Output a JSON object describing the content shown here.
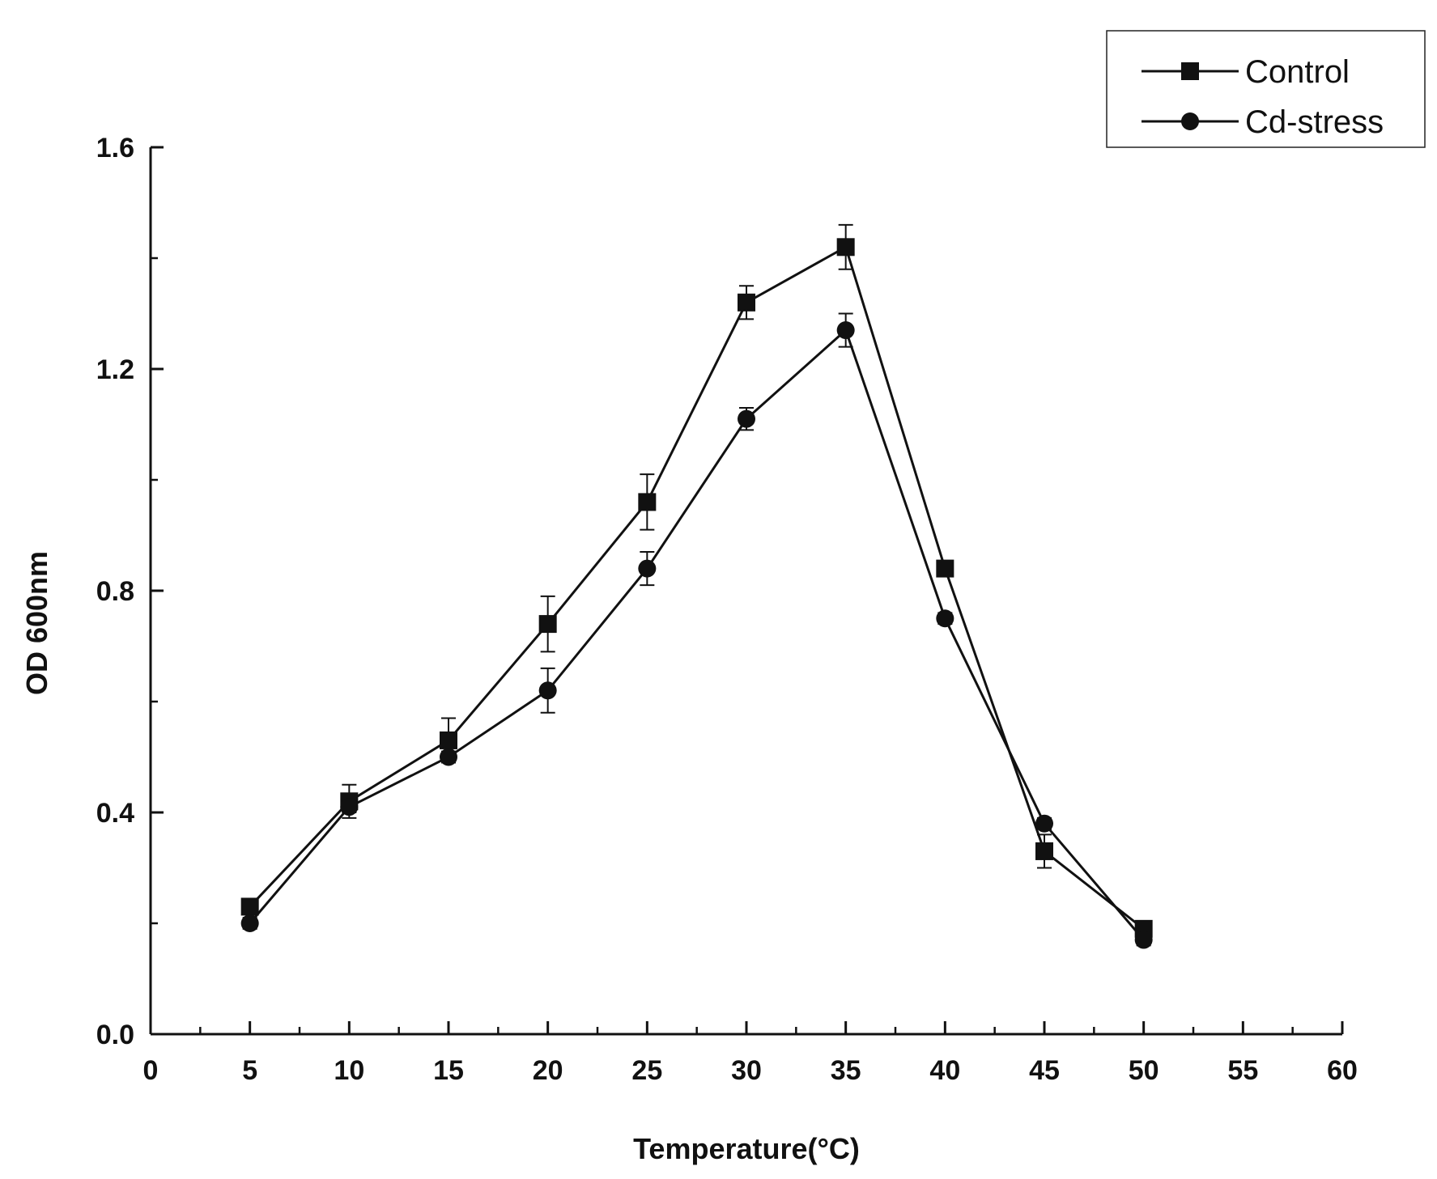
{
  "chart_data": {
    "type": "line",
    "title": "",
    "xlabel": "Temperature(°C)",
    "ylabel": "OD 600nm",
    "xlim": [
      0,
      60
    ],
    "ylim": [
      0.0,
      1.6
    ],
    "x_ticks": [
      "0",
      "5",
      "10",
      "15",
      "20",
      "25",
      "30",
      "35",
      "40",
      "45",
      "50",
      "55",
      "60"
    ],
    "y_ticks": [
      "0.0",
      "0.4",
      "0.8",
      "1.2",
      "1.6"
    ],
    "grid": false,
    "legend_position": "top-right",
    "x": [
      5,
      10,
      15,
      20,
      25,
      30,
      35,
      40,
      45,
      50
    ],
    "series": [
      {
        "name": "Control",
        "marker": "square",
        "values": [
          0.23,
          0.42,
          0.53,
          0.74,
          0.96,
          1.32,
          1.42,
          0.84,
          0.33,
          0.19
        ],
        "errors": [
          0.01,
          0.03,
          0.04,
          0.05,
          0.05,
          0.03,
          0.04,
          0.01,
          0.03,
          0.01
        ]
      },
      {
        "name": "Cd-stress",
        "marker": "circle",
        "values": [
          0.2,
          0.41,
          0.5,
          0.62,
          0.84,
          1.11,
          1.27,
          0.75,
          0.38,
          0.17
        ],
        "errors": [
          0.01,
          0.01,
          0.01,
          0.04,
          0.03,
          0.02,
          0.03,
          0.01,
          0.01,
          0.01
        ]
      }
    ]
  }
}
